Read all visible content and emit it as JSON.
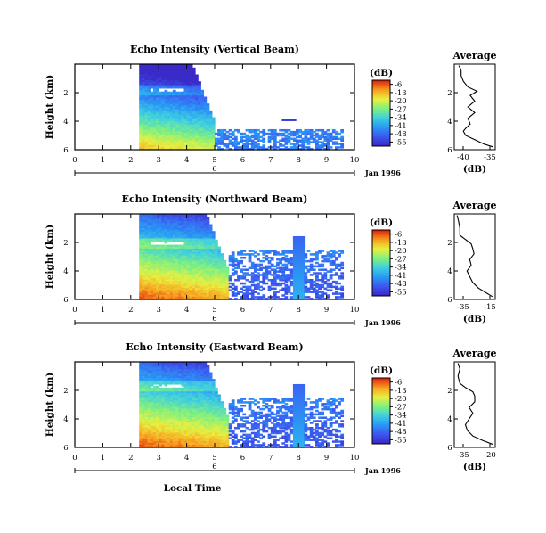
{
  "chart_data": [
    {
      "type": "heatmap",
      "title": "Echo Intensity (Vertical Beam)",
      "ylabel": "Height (km)",
      "xlim": [
        0,
        10
      ],
      "ylim": [
        0,
        6
      ],
      "x_ticks": [
        "0",
        "1",
        "2",
        "3",
        "4",
        "5",
        "6",
        "7",
        "8",
        "9",
        "10"
      ],
      "y_ticks": [
        "2",
        "4",
        "6"
      ],
      "date_label": "Jan 1996",
      "date_day": "6",
      "colorbar": {
        "unit": "(dB)",
        "ticks": [
          "-6",
          "-13",
          "-20",
          "-27",
          "-34",
          "-41",
          "-48",
          "-55"
        ]
      },
      "echo_start_hour": 2.35,
      "echo_top_km_before_5h": 6,
      "melting_layer_km": 4.2,
      "precip_end_hour": 5.0,
      "surface_db": -13,
      "average_profile": {
        "title": "Average",
        "xlabel": "(dB)",
        "x_ticks": [
          "-40",
          "-35"
        ],
        "y_ticks": [
          "2",
          "4",
          "6"
        ],
        "xlim": [
          -42,
          -33
        ],
        "heights_km": [
          0.2,
          0.4,
          0.7,
          1.0,
          1.3,
          1.5,
          1.8,
          2.2,
          2.6,
          3.0,
          3.4,
          3.8,
          4.1,
          4.4,
          4.8,
          5.2,
          5.6,
          5.9
        ],
        "values_db": [
          -33.5,
          -35.5,
          -37.5,
          -39.5,
          -40,
          -39.5,
          -38.5,
          -39,
          -37.5,
          -39,
          -37.5,
          -38.5,
          -37,
          -39,
          -40,
          -40.5,
          -40.5,
          -41
        ]
      }
    },
    {
      "type": "heatmap",
      "title": "Echo Intensity (Northward Beam)",
      "ylabel": "Height (km)",
      "xlim": [
        0,
        10
      ],
      "ylim": [
        0,
        6
      ],
      "x_ticks": [
        "0",
        "1",
        "2",
        "3",
        "4",
        "5",
        "6",
        "7",
        "8",
        "9",
        "10"
      ],
      "y_ticks": [
        "2",
        "4",
        "6"
      ],
      "date_label": "Jan 1996",
      "date_day": "6",
      "colorbar": {
        "unit": "(dB)",
        "ticks": [
          "-6",
          "-13",
          "-20",
          "-27",
          "-34",
          "-41",
          "-48",
          "-55"
        ]
      },
      "echo_start_hour": 2.35,
      "melting_layer_km": 4.0,
      "precip_end_hour": 5.5,
      "surface_db": -6,
      "average_profile": {
        "title": "Average",
        "xlabel": "(dB)",
        "x_ticks": [
          "-35",
          "-15"
        ],
        "y_ticks": [
          "2",
          "4",
          "6"
        ],
        "xlim": [
          -42,
          -13
        ],
        "heights_km": [
          0.2,
          0.5,
          0.8,
          1.2,
          1.6,
          2.0,
          2.4,
          2.8,
          3.2,
          3.6,
          3.9,
          4.2,
          4.5,
          5.0,
          5.5,
          5.9
        ],
        "values_db": [
          -15,
          -20,
          -25,
          -29,
          -31,
          -33,
          -30,
          -31,
          -28,
          -29,
          -30,
          -34,
          -38,
          -38,
          -39,
          -40
        ]
      }
    },
    {
      "type": "heatmap",
      "title": "Echo Intensity (Eastward Beam)",
      "ylabel": "Height (km)",
      "xlabel": "Local Time",
      "xlim": [
        0,
        10
      ],
      "ylim": [
        0,
        6
      ],
      "x_ticks": [
        "0",
        "1",
        "2",
        "3",
        "4",
        "5",
        "6",
        "7",
        "8",
        "9",
        "10"
      ],
      "y_ticks": [
        "2",
        "4",
        "6"
      ],
      "date_label": "Jan 1996",
      "date_day": "6",
      "colorbar": {
        "unit": "(dB)",
        "ticks": [
          "-6",
          "-13",
          "-20",
          "-27",
          "-34",
          "-41",
          "-48",
          "-55"
        ]
      },
      "echo_start_hour": 2.35,
      "melting_layer_km": 4.3,
      "precip_end_hour": 5.5,
      "surface_db": -6,
      "average_profile": {
        "title": "Average",
        "xlabel": "(dB)",
        "x_ticks": [
          "-35",
          "-20"
        ],
        "y_ticks": [
          "2",
          "4",
          "6"
        ],
        "xlim": [
          -39,
          -17
        ],
        "heights_km": [
          0.2,
          0.5,
          0.8,
          1.2,
          1.6,
          2.0,
          2.4,
          2.8,
          3.2,
          3.6,
          3.9,
          4.2,
          4.5,
          5.0,
          5.5,
          5.9
        ],
        "values_db": [
          -18,
          -24,
          -29,
          -32,
          -33,
          -31,
          -29,
          -31,
          -28,
          -28,
          -29,
          -33,
          -36,
          -37,
          -36,
          -37
        ]
      }
    }
  ]
}
